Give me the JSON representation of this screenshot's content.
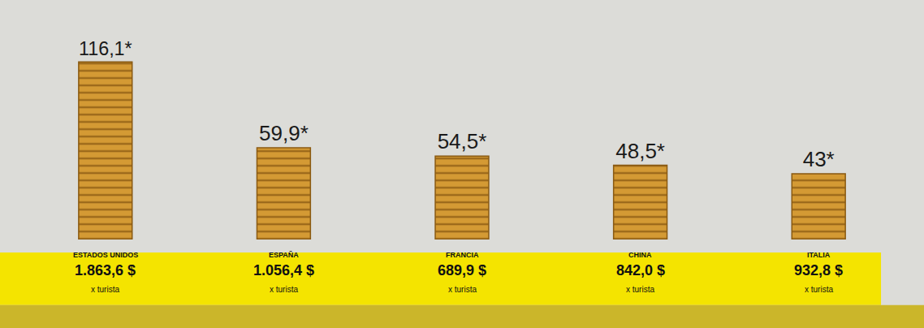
{
  "chart_data": {
    "type": "bar",
    "categories": [
      "ESTADOS UNIDOS",
      "ESPAÑA",
      "FRANCIA",
      "CHINA",
      "ITALIA"
    ],
    "values": [
      116.1,
      59.9,
      54.5,
      48.5,
      43
    ],
    "value_labels": [
      "116,1*",
      "59,9*",
      "54,5*",
      "48,5*",
      "43*"
    ],
    "data_labels": true,
    "color": "#d49a34",
    "tick_labels": false,
    "per_tourist": {
      "values": [
        1863.6,
        1056.4,
        689.9,
        842.0,
        932.8
      ],
      "value_labels": [
        "1.863,6 $",
        "1.056,4 $",
        "689,9 $",
        "842,0 $",
        "932,8 $"
      ],
      "unit": "x turista"
    }
  }
}
